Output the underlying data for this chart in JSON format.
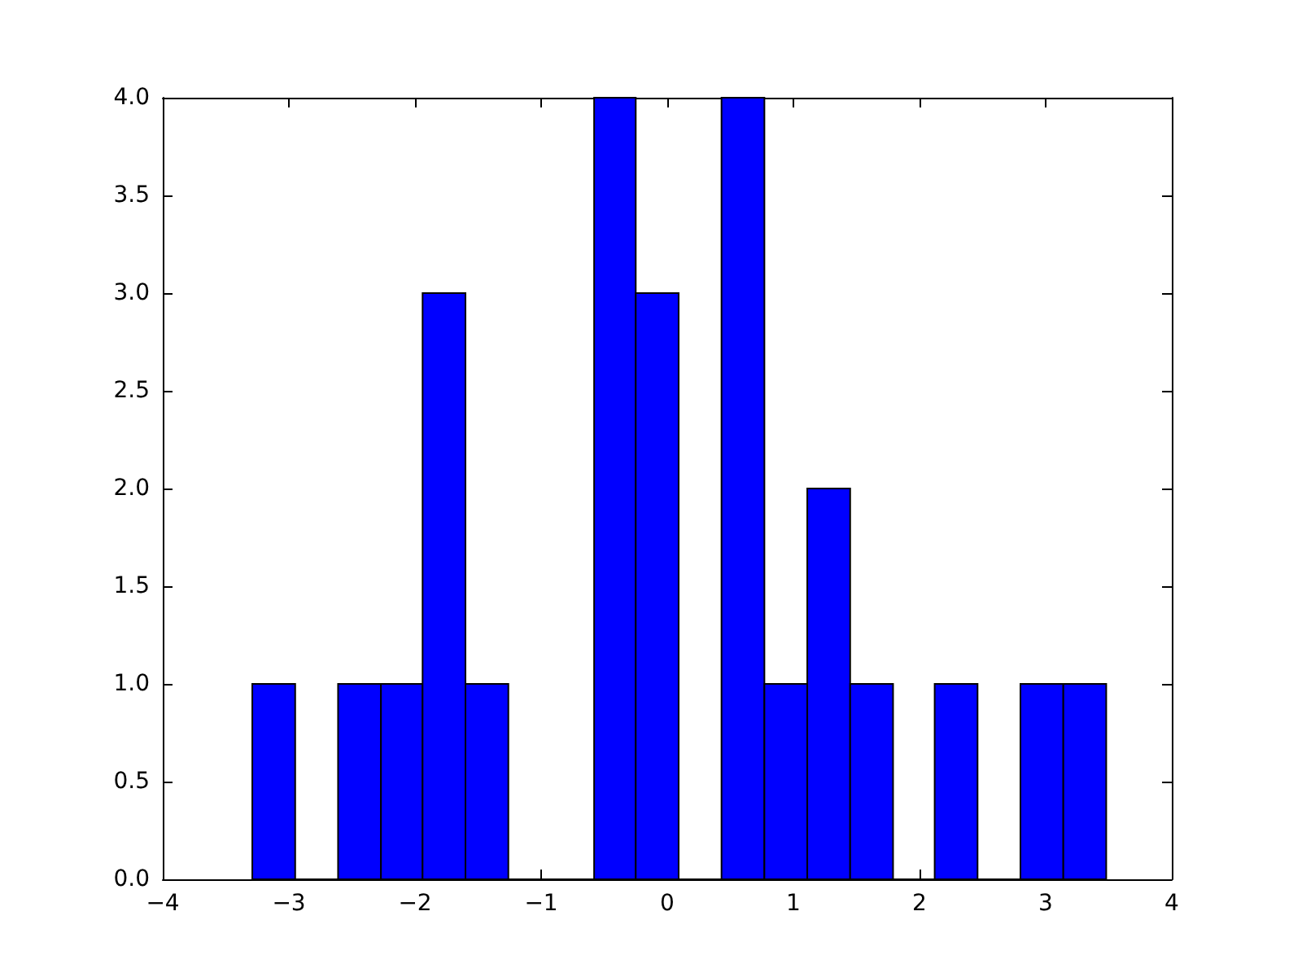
{
  "chart_data": {
    "type": "histogram",
    "color": "#0000ff",
    "bins": [
      -3.29,
      -2.95,
      -2.61,
      -2.27,
      -1.94,
      -1.6,
      -1.26,
      -0.58,
      -0.25,
      0.09,
      0.43,
      0.77,
      1.11,
      1.45,
      1.79,
      2.12,
      2.46,
      2.8,
      3.14,
      3.48
    ],
    "values": [
      1,
      0,
      1,
      1,
      3,
      1,
      0,
      4,
      3,
      0,
      4,
      1,
      2,
      1,
      0,
      1,
      0,
      1,
      1
    ],
    "xlim": [
      -4,
      4
    ],
    "xticks": [
      {
        "value": -4,
        "label": "−4"
      },
      {
        "value": -3,
        "label": "−3"
      },
      {
        "value": -2,
        "label": "−2"
      },
      {
        "value": -1,
        "label": "−1"
      },
      0,
      1,
      2,
      3,
      4
    ],
    "ylim": [
      0,
      4
    ],
    "yticks": [
      {
        "value": 0,
        "label": "0.0"
      },
      {
        "value": 0.5,
        "label": "0.5"
      },
      {
        "value": 1,
        "label": "1.0"
      },
      {
        "value": 1.5,
        "label": "1.5"
      },
      {
        "value": 2,
        "label": "2.0"
      },
      {
        "value": 2.5,
        "label": "2.5"
      },
      {
        "value": 3,
        "label": "3.0"
      },
      {
        "value": 3.5,
        "label": "3.5"
      },
      {
        "value": 4,
        "label": "4.0"
      }
    ],
    "grid": false
  }
}
